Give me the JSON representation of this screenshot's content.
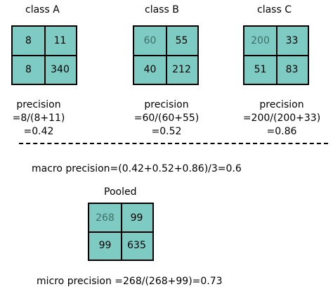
{
  "classes": [
    {
      "title": "class A",
      "cells": [
        "8",
        "11",
        "8",
        "340"
      ],
      "formula": [
        "precision",
        "=8/(8+11)",
        "=0.42"
      ]
    },
    {
      "title": "class  B",
      "cells": [
        "60",
        "55",
        "40",
        "212"
      ],
      "formula": [
        "precision",
        "=60/(60+55)",
        "=0.52"
      ]
    },
    {
      "title": "class  C",
      "cells": [
        "200",
        "33",
        "51",
        "83"
      ],
      "formula": [
        "precision",
        "=200/(200+33)",
        "=0.86"
      ]
    }
  ],
  "macro": "macro precision=(0.42+0.52+0.86)/3=0.6",
  "pooled": {
    "title": "Pooled",
    "cells": [
      "268",
      "99",
      "99",
      "635"
    ]
  },
  "micro": "micro precision =268/(268+99)=0.73",
  "colors": {
    "cell_fill": "#7ecbc4",
    "border": "#000000",
    "muted_text": "#3f6e6a"
  }
}
